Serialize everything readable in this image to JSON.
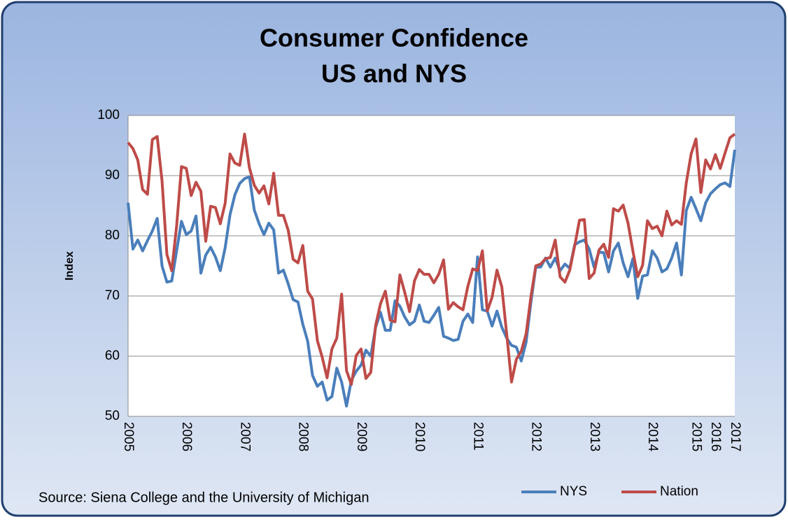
{
  "chart_data": {
    "type": "line",
    "title": "Consumer Confidence",
    "subtitle": "US and NYS",
    "y_label": "Index",
    "source": "Source: Siena College and the University of Michigan",
    "categories": [
      "2005",
      null,
      null,
      null,
      null,
      null,
      null,
      null,
      null,
      null,
      null,
      null,
      "2006",
      null,
      null,
      null,
      null,
      null,
      null,
      null,
      null,
      null,
      null,
      null,
      "2007",
      null,
      null,
      null,
      null,
      null,
      null,
      null,
      null,
      null,
      null,
      null,
      "2008",
      null,
      null,
      null,
      null,
      null,
      null,
      null,
      null,
      null,
      null,
      null,
      "2009",
      null,
      null,
      null,
      null,
      null,
      null,
      null,
      null,
      null,
      null,
      null,
      "2010",
      null,
      null,
      null,
      null,
      null,
      null,
      null,
      null,
      null,
      null,
      null,
      "2011",
      null,
      null,
      null,
      null,
      null,
      null,
      null,
      null,
      null,
      null,
      null,
      "2012",
      null,
      null,
      null,
      null,
      null,
      null,
      null,
      null,
      null,
      null,
      null,
      "2013",
      null,
      null,
      null,
      null,
      null,
      null,
      null,
      null,
      null,
      null,
      null,
      "2014",
      null,
      null,
      null,
      null,
      null,
      null,
      null,
      null,
      "2015",
      null,
      null,
      null,
      "2016",
      null,
      null,
      null,
      "2017"
    ],
    "series": [
      {
        "name": "NYS",
        "color": "#4a7ebb",
        "values": [
          85.5,
          77.8,
          79.3,
          77.5,
          79.2,
          80.8,
          82.9,
          75,
          72.3,
          72.5,
          77.5,
          82.4,
          80.2,
          80.8,
          83.3,
          73.8,
          76.8,
          78.1,
          76.5,
          74.2,
          78,
          83.5,
          86.8,
          88.7,
          89.5,
          89.8,
          84.3,
          82,
          80.2,
          82.1,
          81,
          73.8,
          74.3,
          72,
          69.4,
          69,
          65.3,
          62.5,
          56.8,
          55,
          55.7,
          52.7,
          53.3,
          58,
          55.7,
          51.7,
          56,
          57.5,
          58.5,
          61,
          60,
          64.8,
          67.3,
          64.3,
          64.3,
          69.2,
          68.3,
          66.5,
          65.2,
          65.8,
          68.5,
          65.8,
          65.6,
          66.8,
          68.1,
          63.3,
          63,
          62.6,
          62.8,
          65.8,
          67,
          65.6,
          76.5,
          67.7,
          67.5,
          65,
          67.5,
          64.8,
          63,
          61.8,
          61.5,
          59.2,
          62.3,
          69,
          74.8,
          74.8,
          76.3,
          74.8,
          76.3,
          74.2,
          75.3,
          74.6,
          78.5,
          79,
          79.3,
          77.8,
          74.8,
          77.3,
          77.2,
          74,
          77.5,
          78.8,
          75.5,
          73.2,
          76.2,
          69.6,
          73.3,
          73.5,
          77.5,
          76.3,
          74,
          74.5,
          76.3,
          78.8,
          73.5,
          84.2,
          86.4,
          84.5,
          82.5,
          85.5,
          87,
          87.8,
          88.5,
          88.8,
          88.2,
          94.3
        ]
      },
      {
        "name": "Nation",
        "color": "#be4b48",
        "values": [
          95.5,
          94.5,
          92.6,
          87.7,
          86.9,
          96,
          96.5,
          89.1,
          76.9,
          74.2,
          81.6,
          91.5,
          91.2,
          86.7,
          88.9,
          87.4,
          79.1,
          84.9,
          84.7,
          82,
          85.4,
          93.6,
          92.1,
          91.7,
          96.9,
          91.3,
          88.4,
          87.1,
          88.3,
          85.3,
          90.4,
          83.4,
          83.4,
          80.9,
          76.1,
          75.5,
          78.4,
          70.8,
          69.5,
          62.6,
          59.8,
          56.4,
          61.2,
          63,
          70.3,
          57.6,
          55.3,
          60.1,
          61.2,
          56.3,
          57.3,
          65.1,
          68.7,
          70.8,
          66,
          65.7,
          73.5,
          70.6,
          67.4,
          72.5,
          74.4,
          73.6,
          73.6,
          72.2,
          73.6,
          76,
          67.8,
          68.9,
          68.2,
          67.7,
          71.6,
          74.5,
          74.2,
          77.5,
          67.5,
          69.8,
          74.3,
          71.5,
          63.7,
          55.7,
          59.5,
          60.8,
          63.7,
          69.9,
          75,
          75.3,
          76.2,
          76.4,
          79.3,
          73.2,
          72.3,
          74.3,
          78.3,
          82.6,
          82.7,
          72.9,
          73.8,
          77.6,
          78.6,
          76.4,
          84.5,
          84.1,
          85.1,
          82.1,
          77.5,
          73.2,
          75.1,
          82.5,
          81.2,
          81.6,
          80,
          84.1,
          81.8,
          82.5,
          81.9,
          88.8,
          93.6,
          96.1,
          87.2,
          92.6,
          91.1,
          93.5,
          91.2,
          93.8,
          96.3,
          96.9
        ]
      }
    ],
    "ylim": [
      50,
      100
    ],
    "yticks": [
      50,
      60,
      70,
      80,
      90,
      100
    ],
    "grid": true
  }
}
